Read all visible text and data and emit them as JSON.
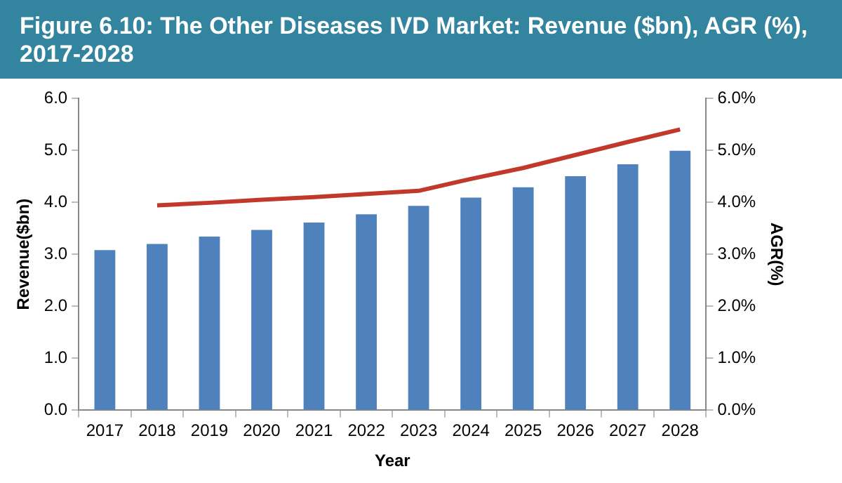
{
  "chart_data": {
    "type": "bar",
    "title": "Figure 6.10: The Other Diseases IVD Market: Revenue ($bn), AGR (%), 2017-2028",
    "xlabel": "Year",
    "ylabel": "Revenue($bn)",
    "y2label": "AGR(%)",
    "categories": [
      "2017",
      "2018",
      "2019",
      "2020",
      "2021",
      "2022",
      "2023",
      "2024",
      "2025",
      "2026",
      "2027",
      "2028"
    ],
    "series": [
      {
        "color": "#4f81bd",
        "values": [
          3.08,
          3.2,
          3.34,
          3.47,
          3.61,
          3.77,
          3.93,
          4.09,
          4.29,
          4.5,
          4.73,
          4.99
        ]
      },
      {
        "type": "line",
        "axis": "y2",
        "color": "#c0392b",
        "marker": "none",
        "values": [
          null,
          3.94,
          3.99,
          4.05,
          4.1,
          4.16,
          4.22,
          4.45,
          4.66,
          4.91,
          5.16,
          5.4
        ]
      }
    ],
    "ylim": [
      0,
      6
    ],
    "yticks": [
      {
        "value": 0,
        "label": "0.0"
      },
      {
        "value": 1,
        "label": "1.0"
      },
      {
        "value": 2,
        "label": "2.0"
      },
      {
        "value": 3,
        "label": "3.0"
      },
      {
        "value": 4,
        "label": "4.0"
      },
      {
        "value": 5,
        "label": "5.0"
      },
      {
        "value": 6,
        "label": "6.0"
      }
    ],
    "y2lim": [
      0,
      6
    ],
    "y2ticks": [
      {
        "value": 0,
        "label": "0.0%"
      },
      {
        "value": 1,
        "label": "1.0%"
      },
      {
        "value": 2,
        "label": "2.0%"
      },
      {
        "value": 3,
        "label": "3.0%"
      },
      {
        "value": 4,
        "label": "4.0%"
      },
      {
        "value": 5,
        "label": "5.0%"
      },
      {
        "value": 6,
        "label": "6.0%"
      }
    ],
    "grid": false,
    "legend": false
  }
}
